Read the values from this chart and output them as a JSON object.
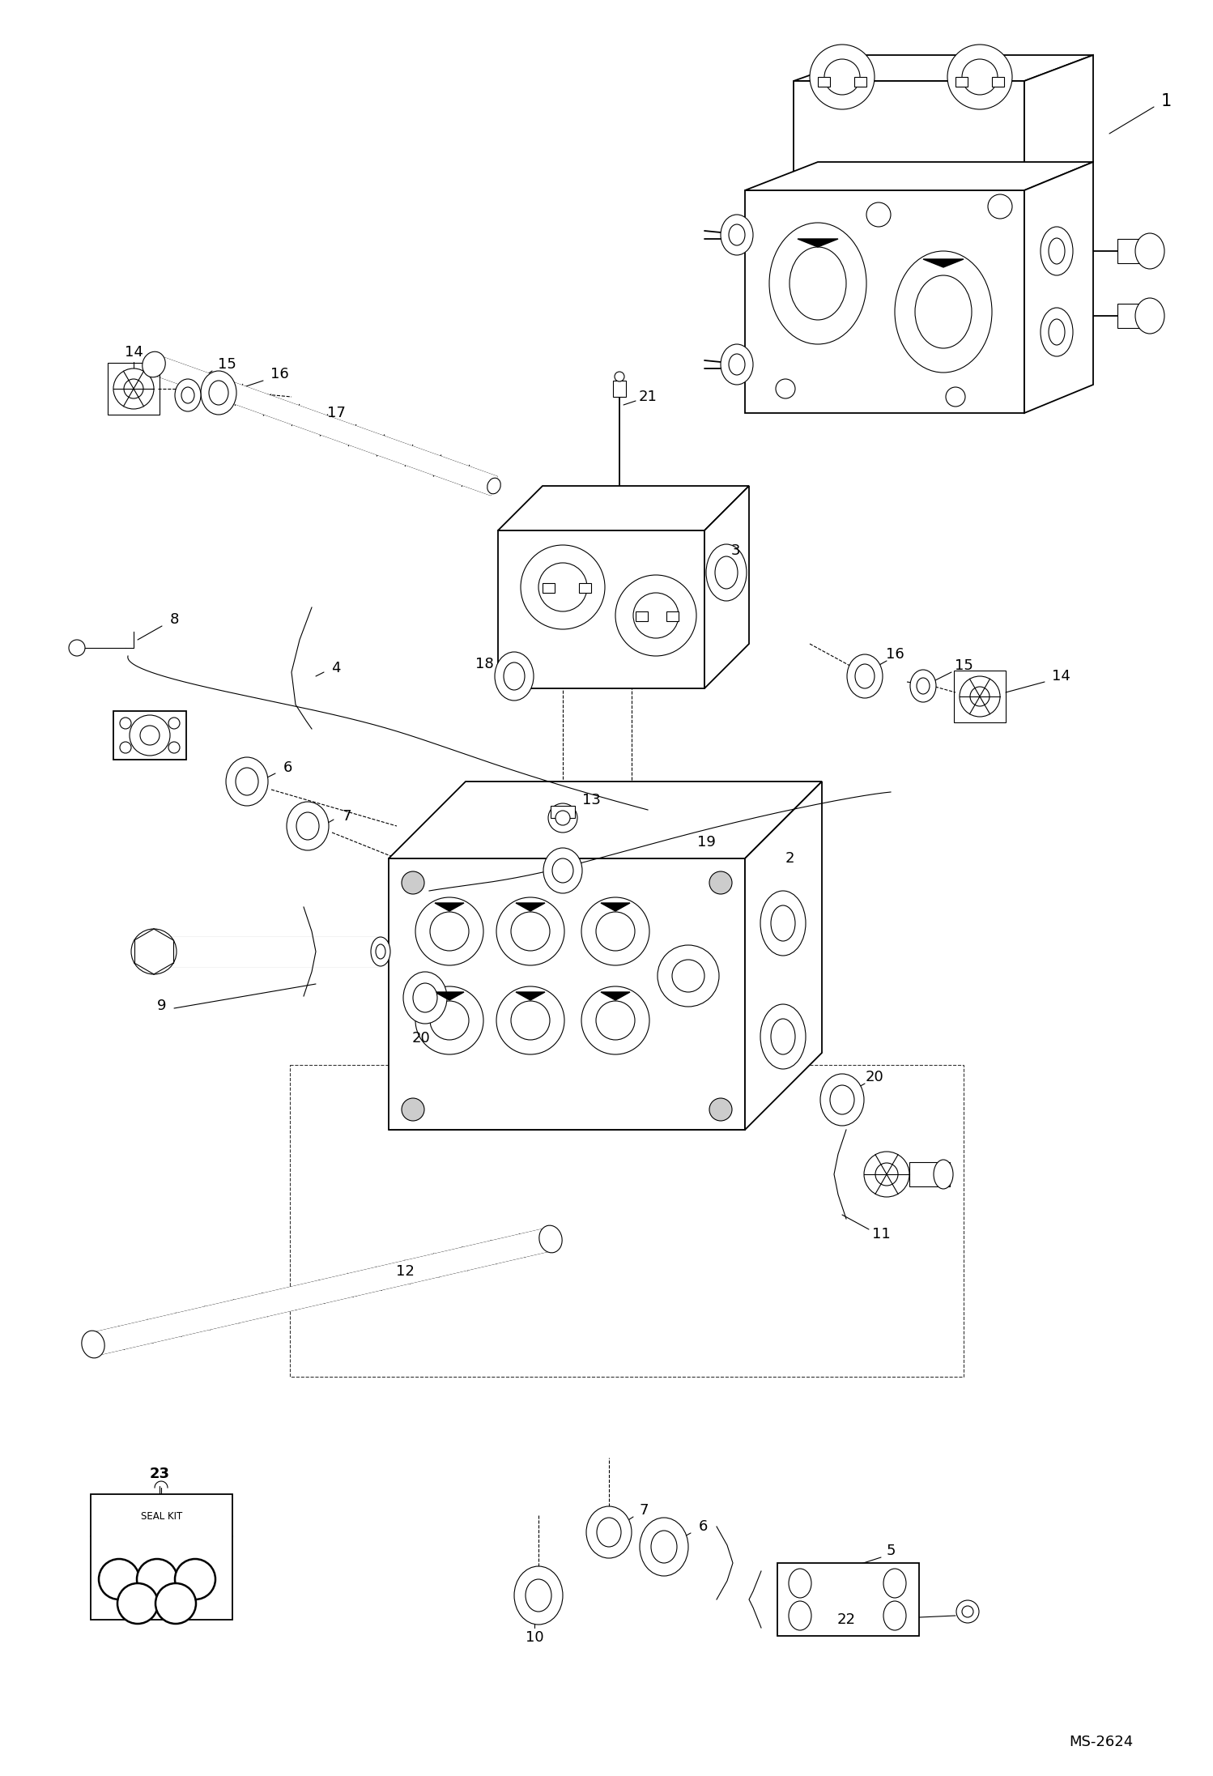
{
  "bg_color": "#ffffff",
  "line_color": "#000000",
  "ms_label": "MS-2624",
  "figsize": [
    14.98,
    21.93
  ],
  "dpi": 100
}
